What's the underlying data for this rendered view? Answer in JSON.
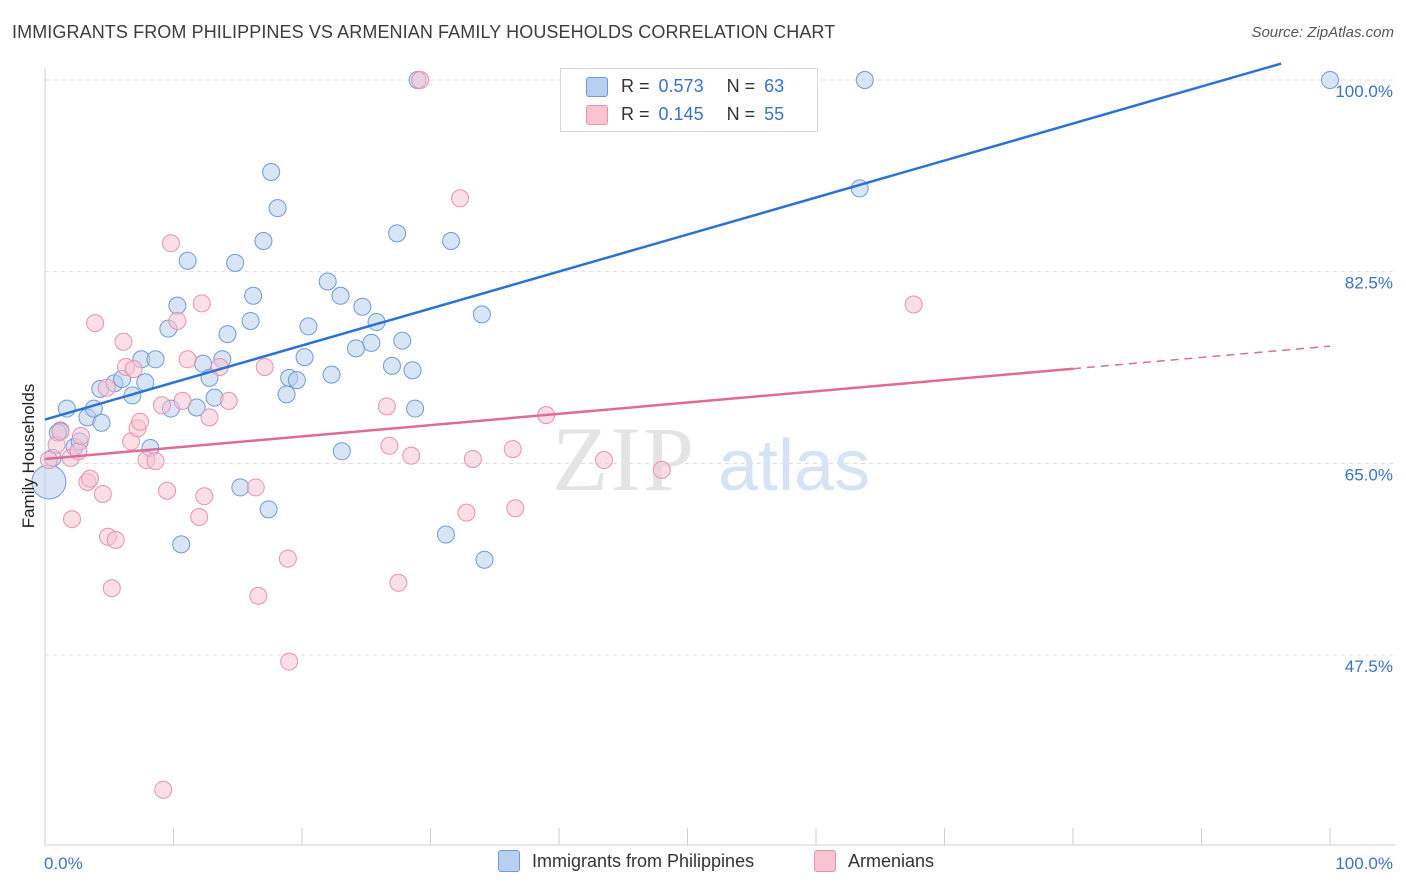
{
  "header": {
    "title": "IMMIGRANTS FROM PHILIPPINES VS ARMENIAN FAMILY HOUSEHOLDS CORRELATION CHART",
    "source": "Source: ZipAtlas.com"
  },
  "legend": {
    "rows": [
      {
        "r_label": "R =",
        "r_value": "0.573",
        "n_label": "N =",
        "n_value": "63"
      },
      {
        "r_label": "R =",
        "r_value": "0.145",
        "n_label": "N =",
        "n_value": "55"
      }
    ]
  },
  "bottom_legend": {
    "items": [
      {
        "label": "Immigrants from Philippines"
      },
      {
        "label": "Armenians"
      }
    ]
  },
  "watermark": {
    "zip": "ZIP",
    "atlas": "atlas"
  },
  "colors": {
    "blue_fill": "#b8d0f0",
    "blue_stroke": "#6f9ad8",
    "blue_line": "#2c72d2",
    "pink_fill": "#f8c4d4",
    "pink_stroke": "#e991ae",
    "pink_line": "#e06b98",
    "axis_label": "#3b72c9",
    "grid": "#dcdcdc"
  },
  "chart_data": {
    "type": "scatter",
    "title": "IMMIGRANTS FROM PHILIPPINES VS ARMENIAN FAMILY HOUSEHOLDS CORRELATION CHART",
    "xlabel": "",
    "ylabel": "Family Households",
    "xlim": [
      0,
      100
    ],
    "ylim": [
      32,
      101.5
    ],
    "x_tick_labels": [
      "0.0%",
      "100.0%"
    ],
    "y_ticks": [
      47.5,
      65.0,
      82.5,
      100.0
    ],
    "y_tick_labels": [
      "47.5%",
      "65.0%",
      "82.5%",
      "100.0%"
    ],
    "grid": "horizontal dashed",
    "legend_placement": "top-center",
    "series": [
      {
        "name": "Immigrants from Philippines",
        "color": "#b8d0f0",
        "r": 0.573,
        "n": 63,
        "trend": {
          "x": [
            0,
            96.2
          ],
          "y": [
            69.0,
            101.5
          ],
          "style": "solid"
        },
        "points": [
          [
            0.3,
            63.3
          ],
          [
            0.6,
            65.5
          ],
          [
            1.2,
            68.0
          ],
          [
            1.7,
            70.0
          ],
          [
            2.3,
            66.5
          ],
          [
            2.7,
            67.0
          ],
          [
            3.3,
            69.2
          ],
          [
            3.8,
            70.0
          ],
          [
            4.4,
            68.7
          ],
          [
            4.3,
            71.8
          ],
          [
            5.4,
            72.3
          ],
          [
            6.0,
            72.7
          ],
          [
            6.8,
            71.2
          ],
          [
            7.5,
            74.5
          ],
          [
            7.8,
            72.4
          ],
          [
            8.2,
            66.4
          ],
          [
            8.6,
            74.5
          ],
          [
            9.6,
            77.3
          ],
          [
            9.8,
            70.0
          ],
          [
            10.3,
            79.4
          ],
          [
            10.6,
            57.6
          ],
          [
            11.1,
            83.5
          ],
          [
            11.8,
            70.1
          ],
          [
            12.3,
            74.1
          ],
          [
            12.8,
            72.8
          ],
          [
            13.2,
            71.0
          ],
          [
            13.8,
            74.5
          ],
          [
            14.2,
            76.8
          ],
          [
            14.8,
            83.3
          ],
          [
            15.2,
            62.8
          ],
          [
            16.0,
            78.0
          ],
          [
            16.2,
            80.3
          ],
          [
            17.0,
            85.3
          ],
          [
            17.4,
            60.8
          ],
          [
            17.6,
            91.6
          ],
          [
            18.1,
            88.3
          ],
          [
            18.8,
            71.3
          ],
          [
            19.0,
            72.8
          ],
          [
            19.6,
            72.6
          ],
          [
            20.2,
            74.7
          ],
          [
            20.5,
            77.5
          ],
          [
            22.0,
            81.6
          ],
          [
            22.3,
            73.1
          ],
          [
            23.0,
            80.3
          ],
          [
            23.1,
            66.1
          ],
          [
            24.2,
            75.5
          ],
          [
            24.7,
            79.3
          ],
          [
            25.4,
            76.0
          ],
          [
            25.8,
            77.9
          ],
          [
            27.0,
            73.9
          ],
          [
            27.4,
            86.0
          ],
          [
            27.8,
            76.2
          ],
          [
            28.6,
            73.5
          ],
          [
            28.8,
            70.0
          ],
          [
            29.0,
            100.0
          ],
          [
            31.2,
            58.5
          ],
          [
            31.6,
            85.3
          ],
          [
            34.0,
            78.6
          ],
          [
            34.2,
            56.2
          ],
          [
            63.4,
            90.1
          ],
          [
            63.8,
            100.0
          ],
          [
            100.0,
            100.0
          ],
          [
            1.0,
            67.8
          ]
        ]
      },
      {
        "name": "Armenians",
        "color": "#f8c4d4",
        "r": 0.145,
        "n": 55,
        "trend": {
          "x": [
            0,
            100
          ],
          "y": [
            65.4,
            75.7
          ],
          "solid_until_x": 80,
          "style": "solid then dashed"
        },
        "points": [
          [
            0.3,
            65.3
          ],
          [
            0.9,
            66.7
          ],
          [
            1.2,
            67.9
          ],
          [
            2.0,
            65.5
          ],
          [
            2.1,
            59.9
          ],
          [
            2.6,
            66.1
          ],
          [
            2.8,
            67.5
          ],
          [
            3.3,
            63.3
          ],
          [
            3.5,
            63.6
          ],
          [
            3.9,
            77.8
          ],
          [
            4.5,
            62.2
          ],
          [
            4.8,
            71.9
          ],
          [
            4.9,
            58.3
          ],
          [
            5.2,
            53.6
          ],
          [
            5.5,
            58.0
          ],
          [
            6.1,
            76.1
          ],
          [
            6.3,
            73.8
          ],
          [
            6.7,
            67.0
          ],
          [
            6.9,
            73.6
          ],
          [
            7.2,
            68.2
          ],
          [
            7.4,
            68.8
          ],
          [
            7.9,
            65.3
          ],
          [
            8.6,
            65.2
          ],
          [
            9.1,
            70.3
          ],
          [
            9.2,
            35.2
          ],
          [
            9.5,
            62.5
          ],
          [
            9.8,
            85.1
          ],
          [
            10.3,
            78.0
          ],
          [
            10.7,
            70.7
          ],
          [
            11.1,
            74.5
          ],
          [
            12.0,
            60.1
          ],
          [
            12.2,
            79.6
          ],
          [
            12.4,
            62.0
          ],
          [
            12.8,
            69.2
          ],
          [
            13.6,
            73.8
          ],
          [
            14.3,
            70.7
          ],
          [
            16.4,
            62.8
          ],
          [
            16.6,
            52.9
          ],
          [
            17.1,
            73.8
          ],
          [
            18.9,
            56.3
          ],
          [
            19.0,
            46.9
          ],
          [
            26.6,
            70.2
          ],
          [
            26.8,
            66.6
          ],
          [
            27.5,
            54.1
          ],
          [
            28.5,
            65.7
          ],
          [
            29.2,
            100.0
          ],
          [
            32.3,
            89.2
          ],
          [
            32.8,
            60.5
          ],
          [
            33.3,
            65.4
          ],
          [
            36.4,
            66.3
          ],
          [
            36.6,
            60.9
          ],
          [
            39.0,
            69.4
          ],
          [
            43.5,
            65.3
          ],
          [
            48.0,
            64.4
          ],
          [
            67.6,
            79.5
          ]
        ]
      }
    ]
  }
}
